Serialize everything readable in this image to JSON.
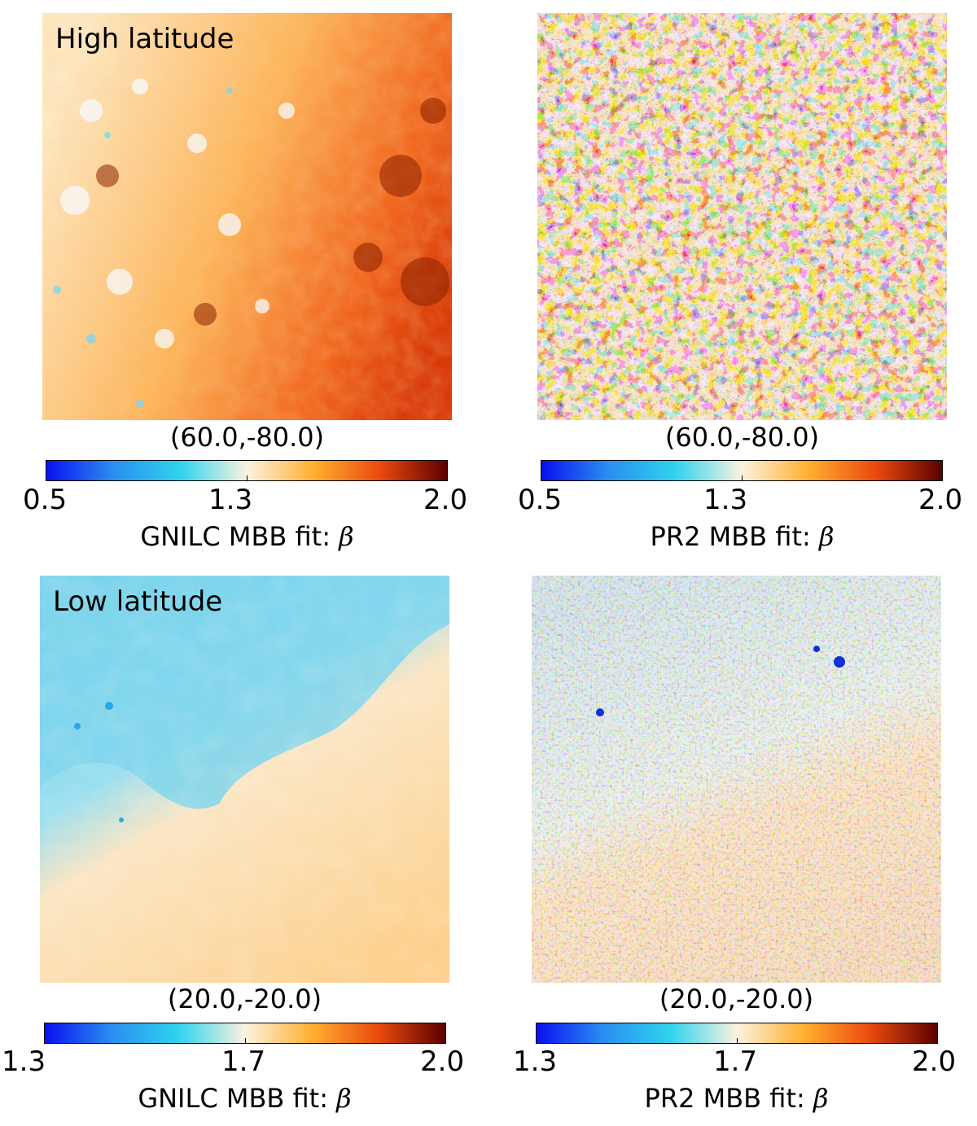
{
  "colormap": [
    "#0a10f0",
    "#2a8ef0",
    "#2fd3ee",
    "#fbf2df",
    "#ffb030",
    "#ea4a0e",
    "#5c0000"
  ],
  "panels": [
    {
      "id": "gnilc-high",
      "map_label": "High latitude",
      "coord": "(60.0,-80.0)",
      "ticks": [
        "0.5",
        "1.3",
        "2.0"
      ],
      "cbar_title": "GNILC MBB fit: ",
      "beta": "β"
    },
    {
      "id": "pr2-high",
      "map_label": "",
      "coord": "(60.0,-80.0)",
      "ticks": [
        "0.5",
        "1.3",
        "2.0"
      ],
      "cbar_title": "PR2 MBB fit: ",
      "beta": "β"
    },
    {
      "id": "gnilc-low",
      "map_label": "Low latitude",
      "coord": "(20.0,-20.0)",
      "ticks": [
        "1.3",
        "1.7",
        "2.0"
      ],
      "cbar_title": "GNILC MBB fit: ",
      "beta": "β"
    },
    {
      "id": "pr2-low",
      "map_label": "",
      "coord": "(20.0,-20.0)",
      "ticks": [
        "1.3",
        "1.7",
        "2.0"
      ],
      "cbar_title": "PR2 MBB fit: ",
      "beta": "β"
    }
  ]
}
